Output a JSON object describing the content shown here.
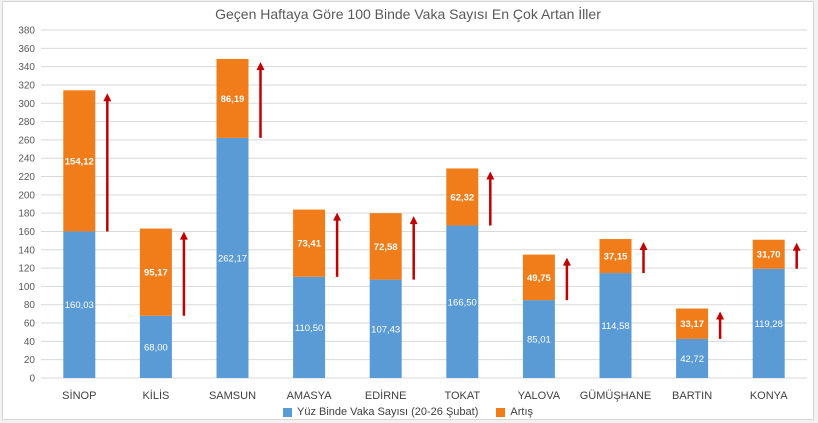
{
  "chart_data": {
    "type": "bar",
    "stacked": true,
    "title": "Geçen Haftaya Göre 100 Binde Vaka Sayısı En Çok Artan İller",
    "categories": [
      "SİNOP",
      "KİLİS",
      "SAMSUN",
      "AMASYA",
      "EDİRNE",
      "TOKAT",
      "YALOVA",
      "GÜMÜŞHANE",
      "BARTIN",
      "KONYA"
    ],
    "series": [
      {
        "name": "Yüz Binde Vaka Sayısı (20-26 Şubat)",
        "color": "#5b9bd5",
        "values": [
          160.03,
          68.0,
          262.17,
          110.5,
          107.43,
          166.5,
          85.01,
          114.58,
          42.72,
          119.28
        ],
        "labels": [
          "160,03",
          "68,00",
          "262,17",
          "110,50",
          "107,43",
          "166,50",
          "85,01",
          "114,58",
          "42,72",
          "119,28"
        ]
      },
      {
        "name": "Artış",
        "color": "#f07c1a",
        "values": [
          154.12,
          95.17,
          86.19,
          73.41,
          72.58,
          62.32,
          49.75,
          37.15,
          33.17,
          31.7
        ],
        "labels": [
          "154,12",
          "95,17",
          "86,19",
          "73,41",
          "72,58",
          "62,32",
          "49,75",
          "37,15",
          "33,17",
          "31,70"
        ]
      }
    ],
    "ylim": [
      0,
      380
    ],
    "ytick_step": 20,
    "yticks": [
      "0",
      "20",
      "40",
      "60",
      "80",
      "100",
      "120",
      "140",
      "160",
      "180",
      "200",
      "220",
      "240",
      "260",
      "280",
      "300",
      "320",
      "340",
      "360",
      "380"
    ],
    "grid": true,
    "legend": "bottom",
    "arrow_color": "#c00000"
  }
}
